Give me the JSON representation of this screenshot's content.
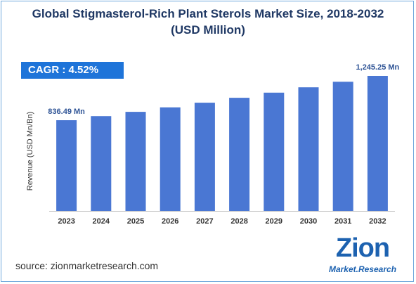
{
  "title_line1": "Global Stigmasterol-Rich Plant Sterols Market Size, 2018-2032",
  "title_line2": "(USD Million)",
  "cagr_label": "CAGR : 4.52%",
  "source": "source: zionmarketresearch.com",
  "logo": {
    "main": "Zion",
    "sub": "Market.Research"
  },
  "colors": {
    "bar": "#4a77d3",
    "title": "#1f3864",
    "cagr_bg": "#1e74d9",
    "label": "#2f5496"
  },
  "chart_data": {
    "type": "bar",
    "categories": [
      "2023",
      "2024",
      "2025",
      "2026",
      "2027",
      "2028",
      "2029",
      "2030",
      "2031",
      "2032"
    ],
    "values": [
      836.49,
      874.3,
      913.8,
      955.1,
      998.3,
      1043.4,
      1090.6,
      1139.9,
      1191.4,
      1245.25
    ],
    "data_labels": [
      {
        "index": 0,
        "text": "836.49 Mn"
      },
      {
        "index": 9,
        "text": "1,245.25 Mn"
      }
    ],
    "title": "Global Stigmasterol-Rich Plant Sterols Market Size, 2018-2032 (USD Million)",
    "xlabel": "",
    "ylabel": "Revenue (USD Mn/Bn)",
    "ylim": [
      0,
      1245.25
    ],
    "grid": false
  }
}
